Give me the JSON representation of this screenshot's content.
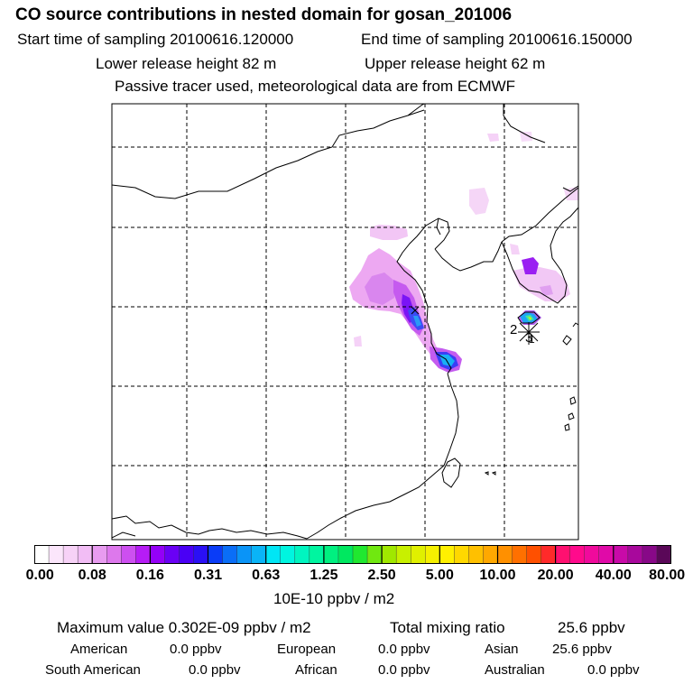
{
  "header": {
    "title": "CO  source contributions in nested domain for gosan_201006",
    "start_time": "Start time of sampling 20100616.120000",
    "end_time": "End time of sampling 20100616.150000",
    "lower_height": "Lower release height   82 m",
    "upper_height": "Upper release height   62 m",
    "note": "Passive tracer used, meteorological data are from ECMWF"
  },
  "map": {
    "receptor_labels": [
      "2",
      "3",
      "1"
    ]
  },
  "colorbar": {
    "ticks": [
      "0.00",
      "0.08",
      "0.16",
      "0.31",
      "0.63",
      "1.25",
      "2.50",
      "5.00",
      "10.00",
      "20.00",
      "40.00",
      "80.00"
    ],
    "unit": "10E-10 ppbv / m2",
    "colors": [
      "#ffffff",
      "#fbe6fb",
      "#f7d2f7",
      "#f2bdf5",
      "#e89cf0",
      "#dd78ec",
      "#cd4ff0",
      "#b61cf5",
      "#9400f7",
      "#6a00f5",
      "#4a00f5",
      "#2a10f5",
      "#0a3cf7",
      "#0a6ef7",
      "#0a94f7",
      "#0ab4f7",
      "#00e6f5",
      "#00f5e0",
      "#00f5c0",
      "#00f5a0",
      "#00f080",
      "#00e860",
      "#20e830",
      "#70e810",
      "#a0e800",
      "#c8f000",
      "#e0f000",
      "#f5f000",
      "#fff000",
      "#ffd800",
      "#ffc000",
      "#ffa800",
      "#ff9000",
      "#ff7000",
      "#ff5000",
      "#ff2a2a",
      "#ff1070",
      "#ff0a8c",
      "#f00a9c",
      "#e00aa8",
      "#c80aa8",
      "#a8089c",
      "#880888",
      "#5a0858"
    ]
  },
  "stats": {
    "max_value": "Maximum value  0.302E-09 ppbv / m2",
    "total_mixing": "Total mixing ratio",
    "total_mixing_value": "25.6 ppbv",
    "american_label": "American",
    "american_value": "0.0 ppbv",
    "european_label": "European",
    "european_value": "0.0 ppbv",
    "asian_label": "Asian",
    "asian_value": "25.6 ppbv",
    "south_american_label": "South American",
    "south_american_value": "0.0 ppbv",
    "african_label": "African",
    "african_value": "0.0 ppbv",
    "australian_label": "Australian",
    "australian_value": "0.0 ppbv"
  }
}
